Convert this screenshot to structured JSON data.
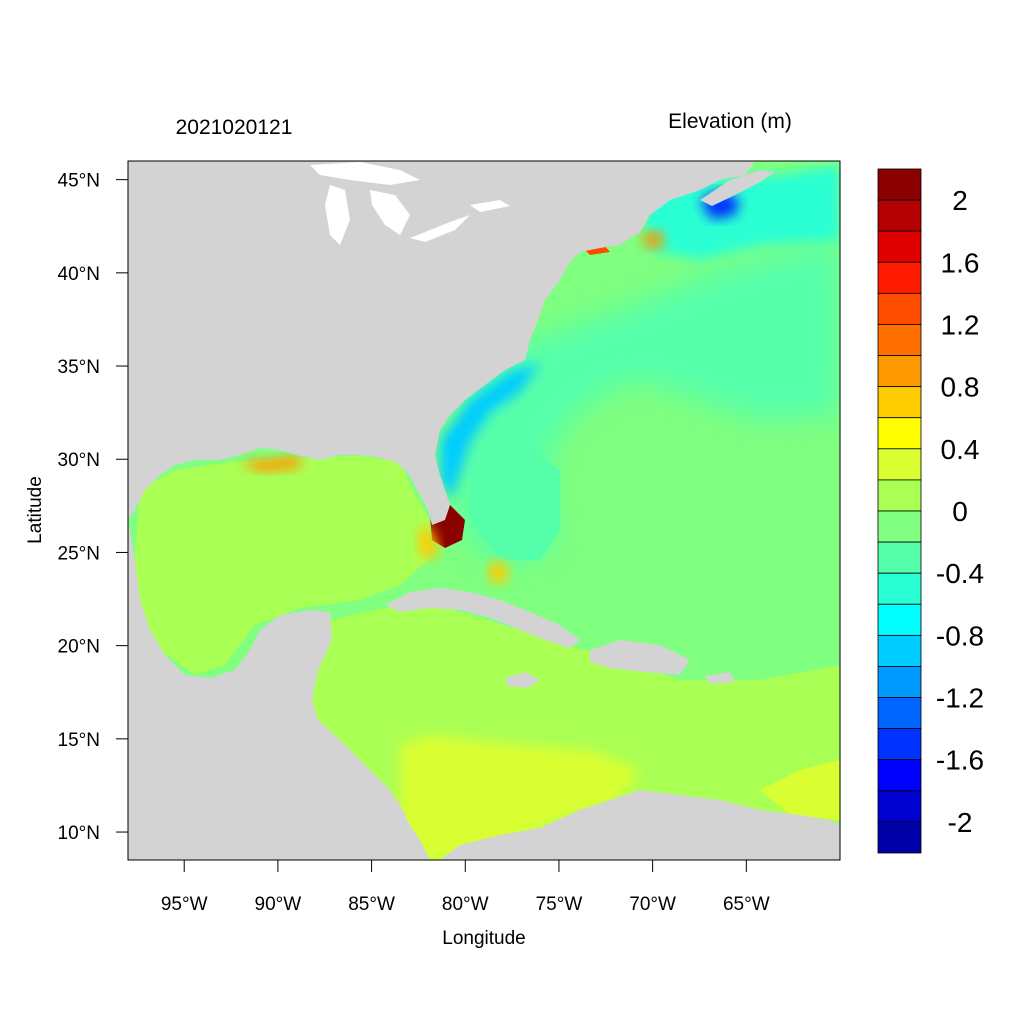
{
  "header": {
    "date_label": "2021020121",
    "variable_label": "Elevation (m)"
  },
  "axes": {
    "xlabel": "Longitude",
    "ylabel": "Latitude",
    "lon_range": [
      -98,
      -60
    ],
    "lat_range": [
      8.5,
      46
    ],
    "lon_ticks": [
      {
        "value": -95,
        "label": "95°W"
      },
      {
        "value": -90,
        "label": "90°W"
      },
      {
        "value": -85,
        "label": "85°W"
      },
      {
        "value": -80,
        "label": "80°W"
      },
      {
        "value": -75,
        "label": "75°W"
      },
      {
        "value": -70,
        "label": "70°W"
      },
      {
        "value": -65,
        "label": "65°W"
      }
    ],
    "lat_ticks": [
      {
        "value": 45,
        "label": "45°N"
      },
      {
        "value": 40,
        "label": "40°N"
      },
      {
        "value": 35,
        "label": "35°N"
      },
      {
        "value": 30,
        "label": "30°N"
      },
      {
        "value": 25,
        "label": "25°N"
      },
      {
        "value": 20,
        "label": "20°N"
      },
      {
        "value": 15,
        "label": "15°N"
      },
      {
        "value": 10,
        "label": "10°N"
      }
    ]
  },
  "colorbar": {
    "labels": [
      "2",
      "1.6",
      "1.2",
      "0.8",
      "0.4",
      "0",
      "-0.4",
      "-0.8",
      "-1.2",
      "-1.6",
      "-2"
    ],
    "colors": [
      "#8b0000",
      "#b40000",
      "#e00000",
      "#ff1a00",
      "#ff4d00",
      "#ff7000",
      "#ff9900",
      "#ffcc00",
      "#ffff00",
      "#d9ff33",
      "#aaff55",
      "#80ff80",
      "#55ffaa",
      "#2affd4",
      "#00ffff",
      "#00ccff",
      "#0099ff",
      "#0066ff",
      "#0033ff",
      "#0000ff",
      "#0000d0",
      "#0000a8"
    ]
  },
  "map": {
    "land_color": "#d3d3d3",
    "ocean_base_color": "#80ff80"
  }
}
